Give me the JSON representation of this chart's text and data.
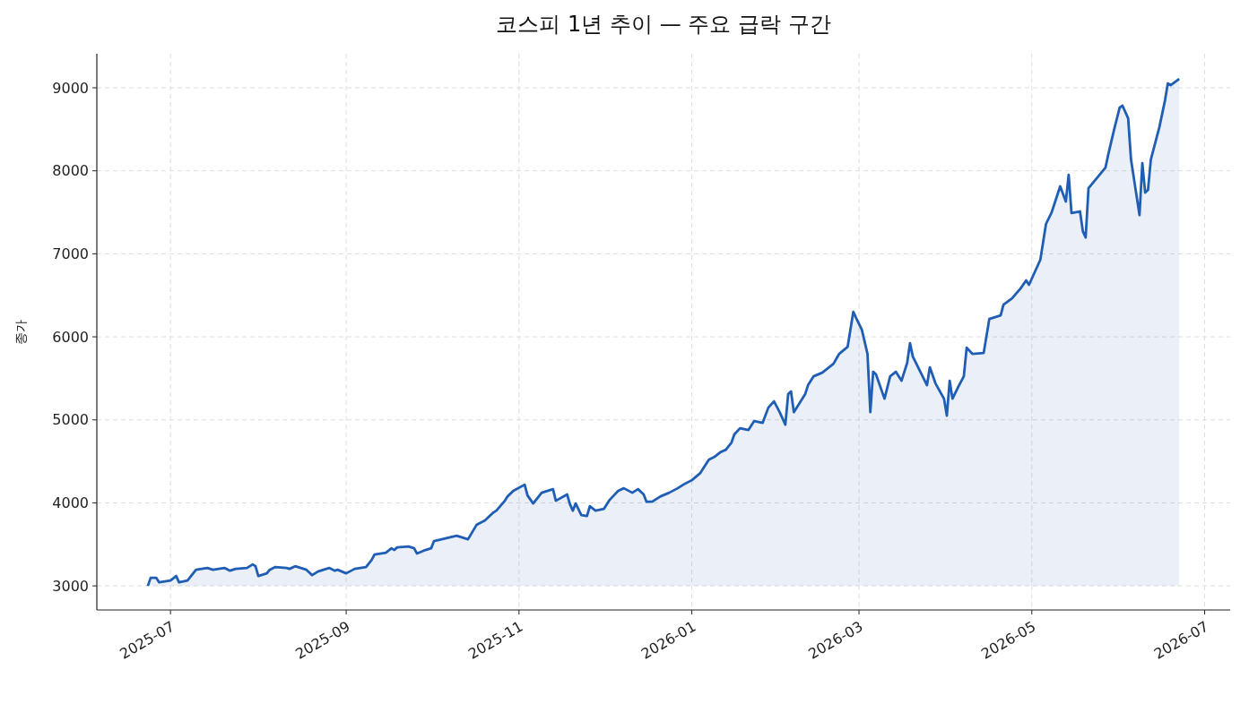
{
  "chart_data": {
    "type": "area",
    "title": "코스피 1년 추이 — 주요 급락 구간",
    "ylabel": "종가",
    "xlim": [
      "2025-06-05",
      "2026-07-10"
    ],
    "ylim": [
      2710,
      9410
    ],
    "xticks": [
      "2025-07",
      "2025-09",
      "2025-11",
      "2026-01",
      "2026-03",
      "2026-05",
      "2026-07"
    ],
    "yticks": [
      3000,
      4000,
      5000,
      6000,
      7000,
      8000,
      9000
    ],
    "grid": true,
    "x": [
      "2025-06-23",
      "2025-06-24",
      "2025-06-26",
      "2025-06-27",
      "2025-07-01",
      "2025-07-03",
      "2025-07-04",
      "2025-07-07",
      "2025-07-09",
      "2025-07-10",
      "2025-07-14",
      "2025-07-16",
      "2025-07-20",
      "2025-07-22",
      "2025-07-24",
      "2025-07-28",
      "2025-07-30",
      "2025-07-31",
      "2025-08-01",
      "2025-08-04",
      "2025-08-05",
      "2025-08-07",
      "2025-08-11",
      "2025-08-12",
      "2025-08-14",
      "2025-08-18",
      "2025-08-20",
      "2025-08-22",
      "2025-08-26",
      "2025-08-28",
      "2025-08-29",
      "2025-09-01",
      "2025-09-04",
      "2025-09-08",
      "2025-09-10",
      "2025-09-11",
      "2025-09-15",
      "2025-09-17",
      "2025-09-18",
      "2025-09-19",
      "2025-09-23",
      "2025-09-25",
      "2025-09-26",
      "2025-09-29",
      "2025-10-01",
      "2025-10-02",
      "2025-10-10",
      "2025-10-14",
      "2025-10-17",
      "2025-10-20",
      "2025-10-23",
      "2025-10-24",
      "2025-10-27",
      "2025-10-28",
      "2025-10-30",
      "2025-11-03",
      "2025-11-04",
      "2025-11-06",
      "2025-11-09",
      "2025-11-13",
      "2025-11-14",
      "2025-11-18",
      "2025-11-19",
      "2025-11-20",
      "2025-11-21",
      "2025-11-23",
      "2025-11-25",
      "2025-11-26",
      "2025-11-28",
      "2025-12-01",
      "2025-12-03",
      "2025-12-06",
      "2025-12-08",
      "2025-12-11",
      "2025-12-13",
      "2025-12-15",
      "2025-12-16",
      "2025-12-18",
      "2025-12-21",
      "2025-12-24",
      "2025-12-27",
      "2025-12-29",
      "2026-01-01",
      "2026-01-04",
      "2026-01-07",
      "2026-01-09",
      "2026-01-11",
      "2026-01-13",
      "2026-01-15",
      "2026-01-16",
      "2026-01-18",
      "2026-01-21",
      "2026-01-23",
      "2026-01-26",
      "2026-01-28",
      "2026-01-30",
      "2026-02-01",
      "2026-02-03",
      "2026-02-04",
      "2026-02-05",
      "2026-02-06",
      "2026-02-10",
      "2026-02-11",
      "2026-02-13",
      "2026-02-16",
      "2026-02-20",
      "2026-02-22",
      "2026-02-25",
      "2026-02-27",
      "2026-02-28",
      "2026-03-02",
      "2026-03-04",
      "2026-03-05",
      "2026-03-06",
      "2026-03-07",
      "2026-03-10",
      "2026-03-12",
      "2026-03-14",
      "2026-03-16",
      "2026-03-18",
      "2026-03-19",
      "2026-03-20",
      "2026-03-25",
      "2026-03-26",
      "2026-03-28",
      "2026-03-31",
      "2026-04-01",
      "2026-04-02",
      "2026-04-03",
      "2026-04-05",
      "2026-04-07",
      "2026-04-08",
      "2026-04-10",
      "2026-04-14",
      "2026-04-16",
      "2026-04-20",
      "2026-04-21",
      "2026-04-24",
      "2026-04-27",
      "2026-04-29",
      "2026-04-30",
      "2026-05-04",
      "2026-05-06",
      "2026-05-08",
      "2026-05-11",
      "2026-05-13",
      "2026-05-14",
      "2026-05-15",
      "2026-05-18",
      "2026-05-19",
      "2026-05-20",
      "2026-05-21",
      "2026-05-27",
      "2026-05-28",
      "2026-05-30",
      "2026-06-01",
      "2026-06-02",
      "2026-06-04",
      "2026-06-05",
      "2026-06-08",
      "2026-06-09",
      "2026-06-10",
      "2026-06-11",
      "2026-06-12",
      "2026-06-15",
      "2026-06-17",
      "2026-06-18",
      "2026-06-19",
      "2026-06-22"
    ],
    "series": [
      {
        "color": "#1f5eb4",
        "values": [
          3000,
          3097,
          3097,
          3043,
          3065,
          3119,
          3043,
          3065,
          3151,
          3194,
          3216,
          3194,
          3216,
          3183,
          3205,
          3216,
          3259,
          3237,
          3119,
          3151,
          3194,
          3227,
          3216,
          3205,
          3237,
          3194,
          3129,
          3173,
          3216,
          3183,
          3194,
          3151,
          3205,
          3227,
          3313,
          3378,
          3400,
          3453,
          3432,
          3464,
          3475,
          3453,
          3389,
          3432,
          3453,
          3540,
          3604,
          3561,
          3734,
          3788,
          3885,
          3906,
          4025,
          4079,
          4144,
          4219,
          4090,
          3993,
          4122,
          4165,
          4025,
          4101,
          3982,
          3906,
          3993,
          3852,
          3842,
          3960,
          3906,
          3928,
          4036,
          4144,
          4176,
          4122,
          4165,
          4101,
          4014,
          4014,
          4079,
          4122,
          4176,
          4219,
          4273,
          4360,
          4521,
          4554,
          4608,
          4640,
          4727,
          4824,
          4899,
          4878,
          4986,
          4964,
          5147,
          5223,
          5093,
          4942,
          5309,
          5342,
          5093,
          5309,
          5417,
          5525,
          5568,
          5676,
          5795,
          5881,
          6302,
          6226,
          6086,
          5795,
          5093,
          5579,
          5547,
          5255,
          5525,
          5579,
          5471,
          5687,
          5924,
          5762,
          5417,
          5633,
          5439,
          5255,
          5050,
          5471,
          5255,
          5395,
          5525,
          5870,
          5795,
          5805,
          6216,
          6259,
          6388,
          6464,
          6582,
          6680,
          6626,
          6928,
          7360,
          7500,
          7813,
          7630,
          7953,
          7490,
          7511,
          7273,
          7197,
          7790,
          8039,
          8200,
          8492,
          8762,
          8784,
          8632,
          8136,
          7467,
          8093,
          7737,
          7769,
          8136,
          8524,
          8848,
          9053,
          9032,
          9107
        ]
      }
    ]
  }
}
